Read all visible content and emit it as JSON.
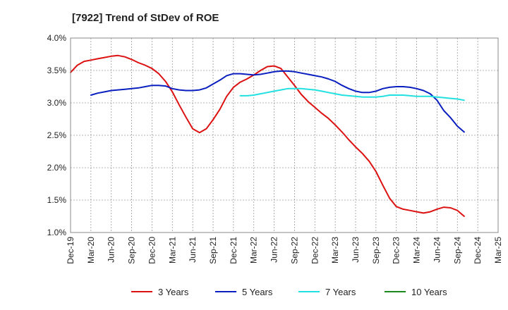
{
  "chart_data": {
    "type": "line",
    "title": "[7922]  Trend of StDev of ROE",
    "xlabel": "",
    "ylabel": "",
    "ylim": [
      1.0,
      4.0
    ],
    "y_ticks": [
      "1.0%",
      "1.5%",
      "2.0%",
      "2.5%",
      "3.0%",
      "3.5%",
      "4.0%"
    ],
    "x_ticks": [
      "Dec-19",
      "Mar-20",
      "Jun-20",
      "Sep-20",
      "Dec-20",
      "Mar-21",
      "Jun-21",
      "Sep-21",
      "Dec-21",
      "Mar-22",
      "Jun-22",
      "Sep-22",
      "Dec-22",
      "Mar-23",
      "Jun-23",
      "Sep-23",
      "Dec-23",
      "Mar-24",
      "Jun-24",
      "Sep-24",
      "Dec-24",
      "Mar-25"
    ],
    "grid": true,
    "legend_position": "bottom",
    "series": [
      {
        "name": "3 Years",
        "color": "#dd1111",
        "points": [
          [
            0,
            3.47
          ],
          [
            1,
            3.58
          ],
          [
            2,
            3.64
          ],
          [
            3,
            3.66
          ],
          [
            4,
            3.68
          ],
          [
            5,
            3.7
          ],
          [
            6,
            3.72
          ],
          [
            7,
            3.73
          ],
          [
            8,
            3.71
          ],
          [
            9,
            3.67
          ],
          [
            10,
            3.62
          ],
          [
            11,
            3.58
          ],
          [
            12,
            3.53
          ],
          [
            13,
            3.45
          ],
          [
            14,
            3.33
          ],
          [
            15,
            3.17
          ],
          [
            16,
            2.97
          ],
          [
            17,
            2.78
          ],
          [
            18,
            2.6
          ],
          [
            19,
            2.54
          ],
          [
            20,
            2.6
          ],
          [
            21,
            2.74
          ],
          [
            22,
            2.9
          ],
          [
            23,
            3.1
          ],
          [
            24,
            3.24
          ],
          [
            25,
            3.32
          ],
          [
            26,
            3.37
          ],
          [
            27,
            3.43
          ],
          [
            28,
            3.5
          ],
          [
            29,
            3.56
          ],
          [
            30,
            3.57
          ],
          [
            31,
            3.53
          ],
          [
            32,
            3.4
          ],
          [
            33,
            3.27
          ],
          [
            34,
            3.13
          ],
          [
            35,
            3.02
          ],
          [
            36,
            2.93
          ],
          [
            37,
            2.84
          ],
          [
            38,
            2.76
          ],
          [
            39,
            2.66
          ],
          [
            40,
            2.55
          ],
          [
            41,
            2.43
          ],
          [
            42,
            2.32
          ],
          [
            43,
            2.22
          ],
          [
            44,
            2.1
          ],
          [
            45,
            1.94
          ],
          [
            46,
            1.73
          ],
          [
            47,
            1.53
          ],
          [
            48,
            1.4
          ],
          [
            49,
            1.36
          ],
          [
            50,
            1.34
          ],
          [
            51,
            1.32
          ],
          [
            52,
            1.3
          ],
          [
            53,
            1.32
          ],
          [
            54,
            1.36
          ],
          [
            55,
            1.39
          ],
          [
            56,
            1.38
          ],
          [
            57,
            1.34
          ],
          [
            58,
            1.25
          ]
        ]
      },
      {
        "name": "5 Years",
        "color": "#0a1fbf",
        "points": [
          [
            3,
            3.12
          ],
          [
            4,
            3.15
          ],
          [
            5,
            3.17
          ],
          [
            6,
            3.19
          ],
          [
            7,
            3.2
          ],
          [
            8,
            3.21
          ],
          [
            9,
            3.22
          ],
          [
            10,
            3.23
          ],
          [
            11,
            3.25
          ],
          [
            12,
            3.27
          ],
          [
            13,
            3.27
          ],
          [
            14,
            3.26
          ],
          [
            15,
            3.22
          ],
          [
            16,
            3.2
          ],
          [
            17,
            3.19
          ],
          [
            18,
            3.19
          ],
          [
            19,
            3.2
          ],
          [
            20,
            3.23
          ],
          [
            21,
            3.29
          ],
          [
            22,
            3.35
          ],
          [
            23,
            3.42
          ],
          [
            24,
            3.45
          ],
          [
            25,
            3.45
          ],
          [
            26,
            3.44
          ],
          [
            27,
            3.43
          ],
          [
            28,
            3.44
          ],
          [
            29,
            3.46
          ],
          [
            30,
            3.48
          ],
          [
            31,
            3.49
          ],
          [
            32,
            3.49
          ],
          [
            33,
            3.48
          ],
          [
            34,
            3.46
          ],
          [
            35,
            3.44
          ],
          [
            36,
            3.42
          ],
          [
            37,
            3.4
          ],
          [
            38,
            3.37
          ],
          [
            39,
            3.33
          ],
          [
            40,
            3.27
          ],
          [
            41,
            3.22
          ],
          [
            42,
            3.18
          ],
          [
            43,
            3.16
          ],
          [
            44,
            3.16
          ],
          [
            45,
            3.18
          ],
          [
            46,
            3.22
          ],
          [
            47,
            3.24
          ],
          [
            48,
            3.25
          ],
          [
            49,
            3.25
          ],
          [
            50,
            3.24
          ],
          [
            51,
            3.22
          ],
          [
            52,
            3.19
          ],
          [
            53,
            3.14
          ],
          [
            54,
            3.04
          ],
          [
            55,
            2.88
          ],
          [
            56,
            2.77
          ],
          [
            57,
            2.64
          ],
          [
            58,
            2.55
          ]
        ]
      },
      {
        "name": "7 Years",
        "color": "#22e0e0",
        "points": [
          [
            25,
            3.11
          ],
          [
            26,
            3.11
          ],
          [
            27,
            3.12
          ],
          [
            28,
            3.14
          ],
          [
            29,
            3.16
          ],
          [
            30,
            3.18
          ],
          [
            31,
            3.2
          ],
          [
            32,
            3.22
          ],
          [
            33,
            3.22
          ],
          [
            34,
            3.22
          ],
          [
            35,
            3.21
          ],
          [
            36,
            3.2
          ],
          [
            37,
            3.18
          ],
          [
            38,
            3.16
          ],
          [
            39,
            3.14
          ],
          [
            40,
            3.12
          ],
          [
            41,
            3.11
          ],
          [
            42,
            3.1
          ],
          [
            43,
            3.09
          ],
          [
            44,
            3.09
          ],
          [
            45,
            3.09
          ],
          [
            46,
            3.1
          ],
          [
            47,
            3.12
          ],
          [
            48,
            3.12
          ],
          [
            49,
            3.12
          ],
          [
            50,
            3.11
          ],
          [
            51,
            3.1
          ],
          [
            52,
            3.1
          ],
          [
            53,
            3.1
          ],
          [
            54,
            3.09
          ],
          [
            55,
            3.08
          ],
          [
            56,
            3.07
          ],
          [
            57,
            3.06
          ],
          [
            58,
            3.04
          ]
        ]
      },
      {
        "name": "10 Years",
        "color": "#1a8a1a",
        "points": []
      }
    ]
  }
}
